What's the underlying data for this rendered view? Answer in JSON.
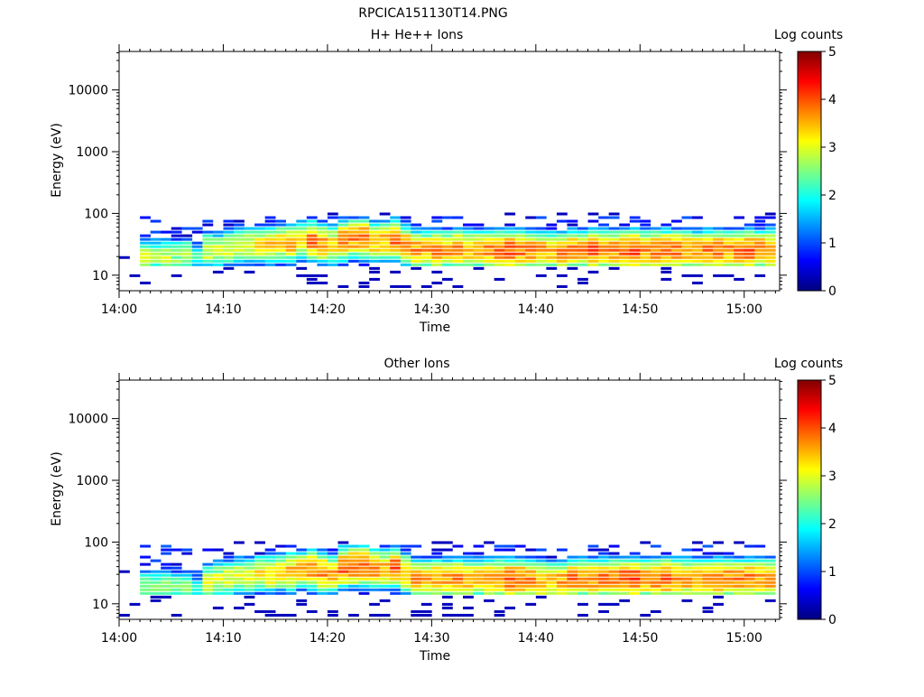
{
  "chart_data": {
    "type": "heatmap",
    "title": "RPCICA151130T14.PNG",
    "colorbar": {
      "label": "Log counts",
      "range": [
        0,
        5
      ],
      "ticks": [
        "0",
        "1",
        "2",
        "3",
        "4",
        "5"
      ]
    },
    "x_ticks": [
      "14:00",
      "14:10",
      "14:20",
      "14:30",
      "14:40",
      "14:50",
      "15:00"
    ],
    "x_range_minutes": [
      0,
      63.4
    ],
    "y_ticks": [
      "10",
      "100",
      "1000",
      "10000"
    ],
    "y_range_eV": [
      5.6,
      42000
    ],
    "panels": [
      {
        "title": "H+ He++ Ions",
        "xlabel": "Time",
        "ylabel": "Energy (eV)",
        "peak_log_counts": [
          1.0,
          1.0,
          2.8,
          2.7,
          2.8,
          2.6,
          2.8,
          2.0,
          3.0,
          2.9,
          3.0,
          3.1,
          3.0,
          3.2,
          3.4,
          3.3,
          3.5,
          3.3,
          3.8,
          3.6,
          3.4,
          3.8,
          3.7,
          3.9,
          3.6,
          3.5,
          3.9,
          3.7,
          3.7,
          3.6,
          3.7,
          3.6,
          3.8,
          3.6,
          3.5,
          3.7,
          3.8,
          4.0,
          3.8,
          3.7,
          3.6,
          3.5,
          3.7,
          3.8,
          3.7,
          3.9,
          3.8,
          3.7,
          3.9,
          4.0,
          3.7,
          3.8,
          3.9,
          3.8,
          3.7,
          3.6,
          3.8,
          3.9,
          3.7,
          3.8,
          3.9,
          3.8,
          3.8
        ],
        "peak_energy_eV": [
          20,
          20,
          20,
          20,
          20,
          20,
          20,
          20,
          25,
          25,
          28,
          30,
          30,
          30,
          30,
          32,
          32,
          35,
          35,
          32,
          30,
          35,
          38,
          38,
          35,
          35,
          38,
          30,
          25,
          25,
          25,
          25,
          25,
          25,
          25,
          25,
          25,
          25,
          25,
          25,
          24,
          24,
          24,
          25,
          25,
          25,
          25,
          25,
          25,
          25,
          25,
          25,
          25,
          25,
          25,
          25,
          25,
          25,
          25,
          25,
          25,
          25,
          25
        ]
      },
      {
        "title": "Other Ions",
        "xlabel": "Time",
        "ylabel": "Energy (eV)",
        "peak_log_counts": [
          1.0,
          1.0,
          2.7,
          2.6,
          2.7,
          2.5,
          2.6,
          1.8,
          2.9,
          2.9,
          3.0,
          3.0,
          3.0,
          3.2,
          3.3,
          3.3,
          3.5,
          3.4,
          3.8,
          3.7,
          3.5,
          3.9,
          4.0,
          4.0,
          3.7,
          3.6,
          3.9,
          3.6,
          3.6,
          3.5,
          3.6,
          3.6,
          3.7,
          3.6,
          3.5,
          3.7,
          3.8,
          3.9,
          3.8,
          3.7,
          3.6,
          3.5,
          3.6,
          3.8,
          3.7,
          3.8,
          3.8,
          3.8,
          4.0,
          4.0,
          3.7,
          3.8,
          3.9,
          3.8,
          3.7,
          3.6,
          3.8,
          3.8,
          3.7,
          3.7,
          3.8,
          3.7,
          3.7
        ],
        "peak_energy_eV": [
          18,
          18,
          18,
          18,
          18,
          18,
          18,
          18,
          22,
          25,
          25,
          28,
          28,
          30,
          30,
          32,
          32,
          35,
          35,
          32,
          30,
          38,
          40,
          40,
          35,
          35,
          38,
          30,
          25,
          25,
          25,
          25,
          25,
          25,
          25,
          25,
          25,
          25,
          25,
          24,
          23,
          23,
          23,
          24,
          25,
          25,
          25,
          25,
          25,
          25,
          25,
          25,
          25,
          25,
          25,
          25,
          25,
          25,
          25,
          25,
          25,
          25,
          25
        ]
      }
    ]
  }
}
